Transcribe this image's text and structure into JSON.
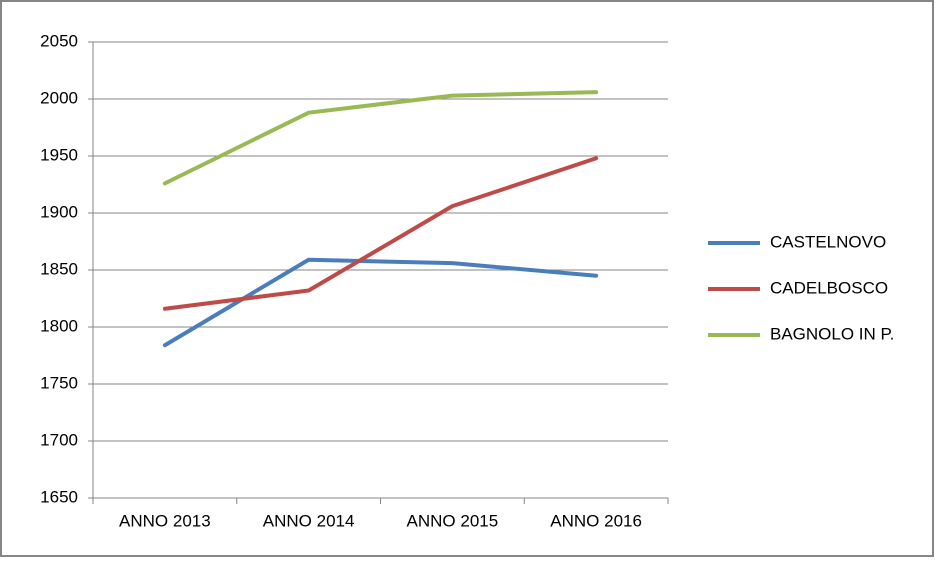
{
  "chart_data": {
    "type": "line",
    "categories": [
      "ANNO 2013",
      "ANNO 2014",
      "ANNO 2015",
      "ANNO 2016"
    ],
    "series": [
      {
        "name": "CASTELNOVO",
        "color": "#4a7ebb",
        "values": [
          1784,
          1859,
          1856,
          1845
        ]
      },
      {
        "name": "CADELBOSCO",
        "color": "#be4b48",
        "values": [
          1816,
          1832,
          1906,
          1948
        ]
      },
      {
        "name": "BAGNOLO IN P.",
        "color": "#98b954",
        "values": [
          1926,
          1988,
          2003,
          2006
        ]
      }
    ],
    "ylim": [
      1650,
      2050
    ],
    "yticks": [
      1650,
      1700,
      1750,
      1800,
      1850,
      1900,
      1950,
      2000,
      2050
    ],
    "grid": true,
    "legend": "right"
  }
}
